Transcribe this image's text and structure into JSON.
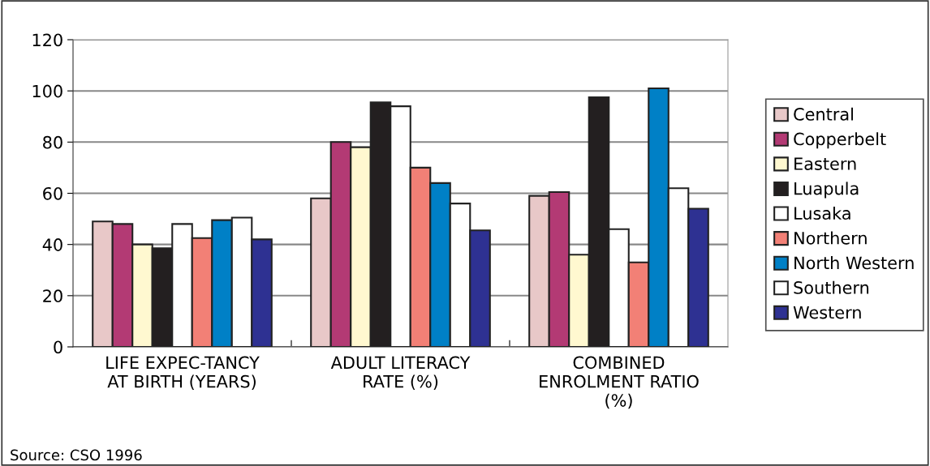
{
  "chart_data": {
    "type": "bar",
    "categories": [
      "LIFE EXPEC-TANCY\nAT BIRTH (YEARS)",
      "ADULT LITERACY\nRATE (%)",
      "COMBINED\nENROLMENT RATIO\n(%)"
    ],
    "series": [
      {
        "name": "Central",
        "color": "#e8c8c8",
        "values": [
          49,
          58,
          59
        ]
      },
      {
        "name": "Copperbelt",
        "color": "#b33a74",
        "values": [
          48,
          80,
          60.5
        ]
      },
      {
        "name": "Eastern",
        "color": "#fff8d0",
        "values": [
          40,
          78,
          36
        ]
      },
      {
        "name": "Luapula",
        "color": "#231f20",
        "values": [
          38.5,
          95.5,
          97.5
        ]
      },
      {
        "name": "Lusaka",
        "color": "#ffffff",
        "values": [
          48,
          94,
          46
        ]
      },
      {
        "name": "Northern",
        "color": "#f28076",
        "values": [
          42.5,
          70,
          33
        ]
      },
      {
        "name": "North Western",
        "color": "#0080c6",
        "values": [
          49.5,
          64,
          101
        ]
      },
      {
        "name": "Southern",
        "color": "#ffffff",
        "values": [
          50.5,
          56,
          62
        ]
      },
      {
        "name": "Western",
        "color": "#2e3192",
        "values": [
          42,
          45.5,
          54
        ]
      }
    ],
    "ylim": [
      0,
      120
    ],
    "yticks": [
      0,
      20,
      40,
      60,
      80,
      100,
      120
    ],
    "grid": "y",
    "legend": "right",
    "annotations": [
      "Source: CSO 1996"
    ]
  }
}
